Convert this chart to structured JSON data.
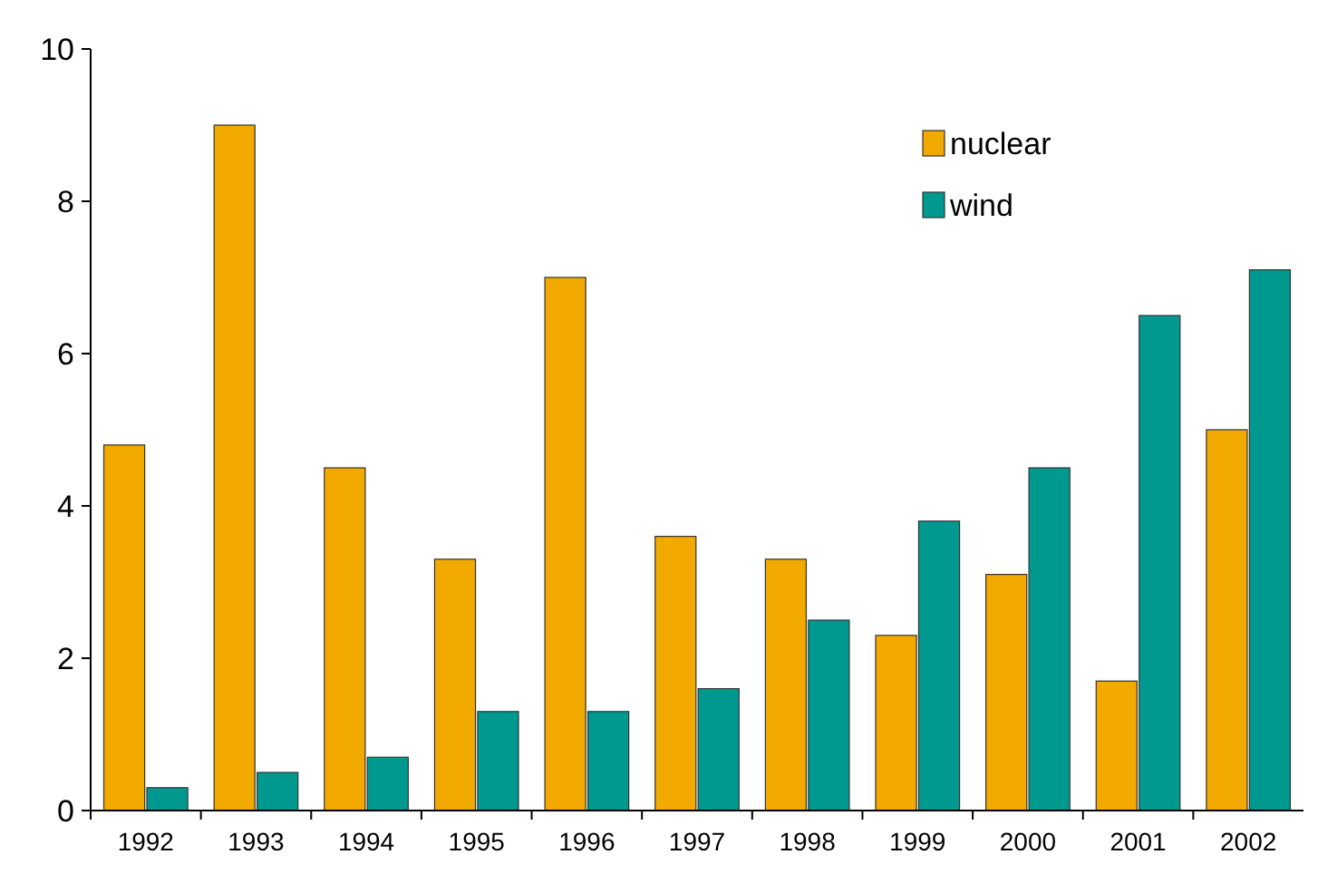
{
  "chart_data": {
    "type": "bar",
    "categories": [
      "1992",
      "1993",
      "1994",
      "1995",
      "1996",
      "1997",
      "1998",
      "1999",
      "2000",
      "2001",
      "2002"
    ],
    "series": [
      {
        "name": "nuclear",
        "color": "#f2a900",
        "values": [
          4.8,
          9.0,
          4.5,
          3.3,
          7.0,
          3.6,
          3.3,
          2.3,
          3.1,
          1.7,
          5.0
        ]
      },
      {
        "name": "wind",
        "color": "#00998f",
        "values": [
          0.3,
          0.5,
          0.7,
          1.3,
          1.3,
          1.6,
          2.5,
          3.8,
          4.5,
          6.5,
          7.1
        ]
      }
    ],
    "ylim": [
      0,
      10
    ],
    "yticks": [
      0,
      2,
      4,
      6,
      8,
      10
    ],
    "grid": false,
    "legend": "top right"
  }
}
